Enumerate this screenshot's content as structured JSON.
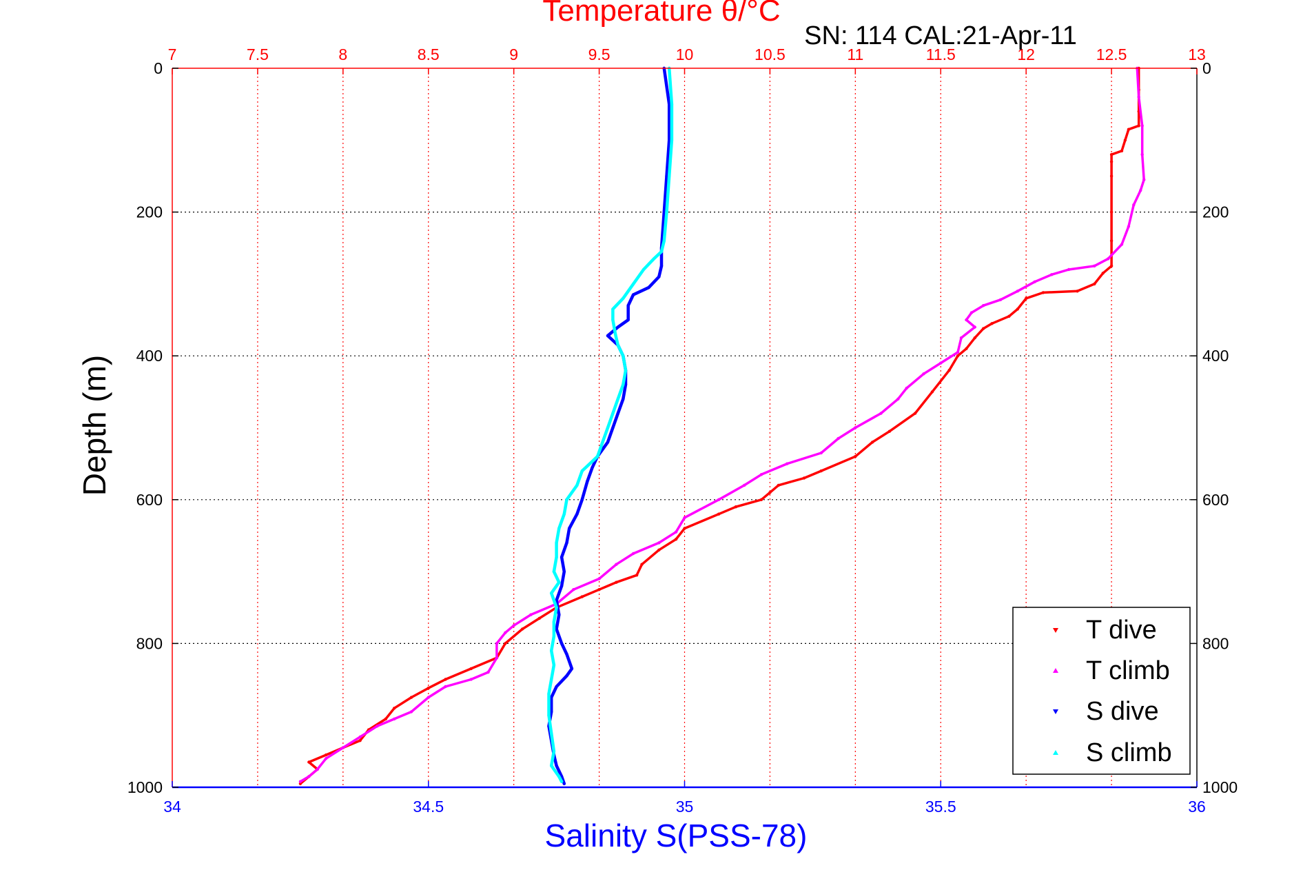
{
  "colors": {
    "temperature_axis": "#ff0000",
    "salinity_axis": "#0000ff",
    "grid_vertical": "#ff0000",
    "grid_horizontal": "#000000",
    "frame_left": "#ff0000",
    "frame_right": "#000000",
    "frame_bottom": "#0000ff",
    "depth_axis": "#000000"
  },
  "chart_data": {
    "type": "line",
    "title": "Temperature θ/°C",
    "subtitle": "SN: 114  CAL:21-Apr-11",
    "xlabel_top": "Temperature θ/°C",
    "xlabel_bottom": "Salinity S(PSS-78)",
    "ylabel": "Depth (m)",
    "x_top_lim": [
      7,
      13
    ],
    "x_bottom_lim": [
      34,
      36
    ],
    "ylim": [
      0,
      1000
    ],
    "y_reversed": true,
    "grid": true,
    "legend_position": "bottom-right",
    "x_top_ticks": [
      "7",
      "7.5",
      "8",
      "8.5",
      "9",
      "9.5",
      "10",
      "10.5",
      "11",
      "11.5",
      "12",
      "12.5",
      "13"
    ],
    "x_bottom_ticks": [
      "34",
      "34.5",
      "35",
      "35.5",
      "36"
    ],
    "y_ticks": [
      "0",
      "200",
      "400",
      "600",
      "800",
      "1000"
    ],
    "series": [
      {
        "name": "T dive",
        "axis": "temperature",
        "color": "#ff0000",
        "marker": "triangle-down",
        "points": [
          [
            12.66,
            0
          ],
          [
            12.66,
            30
          ],
          [
            12.66,
            60
          ],
          [
            12.66,
            80
          ],
          [
            12.6,
            85
          ],
          [
            12.58,
            100
          ],
          [
            12.56,
            115
          ],
          [
            12.5,
            120
          ],
          [
            12.5,
            130
          ],
          [
            12.5,
            150
          ],
          [
            12.5,
            200
          ],
          [
            12.5,
            240
          ],
          [
            12.5,
            275
          ],
          [
            12.45,
            285
          ],
          [
            12.4,
            300
          ],
          [
            12.3,
            310
          ],
          [
            12.1,
            312
          ],
          [
            12.0,
            320
          ],
          [
            11.95,
            335
          ],
          [
            11.9,
            345
          ],
          [
            11.8,
            355
          ],
          [
            11.75,
            362
          ],
          [
            11.7,
            375
          ],
          [
            11.65,
            390
          ],
          [
            11.6,
            400
          ],
          [
            11.55,
            420
          ],
          [
            11.45,
            450
          ],
          [
            11.35,
            480
          ],
          [
            11.2,
            505
          ],
          [
            11.1,
            520
          ],
          [
            11.0,
            540
          ],
          [
            10.8,
            560
          ],
          [
            10.7,
            570
          ],
          [
            10.55,
            580
          ],
          [
            10.5,
            590
          ],
          [
            10.45,
            600
          ],
          [
            10.3,
            610
          ],
          [
            10.2,
            620
          ],
          [
            10.0,
            640
          ],
          [
            9.95,
            655
          ],
          [
            9.85,
            670
          ],
          [
            9.75,
            690
          ],
          [
            9.72,
            705
          ],
          [
            9.6,
            715
          ],
          [
            9.5,
            725
          ],
          [
            9.4,
            735
          ],
          [
            9.25,
            750
          ],
          [
            9.15,
            765
          ],
          [
            9.05,
            780
          ],
          [
            8.95,
            800
          ],
          [
            8.9,
            820
          ],
          [
            8.75,
            835
          ],
          [
            8.6,
            850
          ],
          [
            8.5,
            862
          ],
          [
            8.4,
            875
          ],
          [
            8.3,
            890
          ],
          [
            8.25,
            905
          ],
          [
            8.15,
            920
          ],
          [
            8.1,
            935
          ],
          [
            8.0,
            945
          ],
          [
            7.9,
            955
          ],
          [
            7.8,
            965
          ],
          [
            7.85,
            975
          ],
          [
            7.8,
            985
          ],
          [
            7.75,
            995
          ]
        ]
      },
      {
        "name": "T climb",
        "axis": "temperature",
        "color": "#ff00ff",
        "marker": "triangle-up",
        "points": [
          [
            12.65,
            0
          ],
          [
            12.66,
            40
          ],
          [
            12.68,
            80
          ],
          [
            12.68,
            120
          ],
          [
            12.69,
            155
          ],
          [
            12.67,
            170
          ],
          [
            12.63,
            190
          ],
          [
            12.6,
            220
          ],
          [
            12.56,
            245
          ],
          [
            12.48,
            265
          ],
          [
            12.4,
            275
          ],
          [
            12.25,
            280
          ],
          [
            12.15,
            287
          ],
          [
            12.05,
            297
          ],
          [
            11.95,
            310
          ],
          [
            11.85,
            322
          ],
          [
            11.75,
            330
          ],
          [
            11.68,
            340
          ],
          [
            11.65,
            350
          ],
          [
            11.7,
            360
          ],
          [
            11.62,
            375
          ],
          [
            11.6,
            395
          ],
          [
            11.5,
            410
          ],
          [
            11.4,
            425
          ],
          [
            11.3,
            445
          ],
          [
            11.25,
            460
          ],
          [
            11.15,
            480
          ],
          [
            11.0,
            500
          ],
          [
            10.9,
            515
          ],
          [
            10.8,
            535
          ],
          [
            10.6,
            550
          ],
          [
            10.45,
            565
          ],
          [
            10.35,
            580
          ],
          [
            10.2,
            600
          ],
          [
            10.0,
            625
          ],
          [
            9.95,
            645
          ],
          [
            9.85,
            660
          ],
          [
            9.7,
            675
          ],
          [
            9.6,
            690
          ],
          [
            9.5,
            710
          ],
          [
            9.35,
            725
          ],
          [
            9.25,
            745
          ],
          [
            9.1,
            760
          ],
          [
            9.0,
            775
          ],
          [
            8.95,
            785
          ],
          [
            8.9,
            800
          ],
          [
            8.9,
            820
          ],
          [
            8.85,
            840
          ],
          [
            8.75,
            850
          ],
          [
            8.6,
            860
          ],
          [
            8.5,
            875
          ],
          [
            8.4,
            895
          ],
          [
            8.3,
            905
          ],
          [
            8.2,
            915
          ],
          [
            8.1,
            930
          ],
          [
            8.0,
            945
          ],
          [
            7.9,
            960
          ],
          [
            7.85,
            975
          ],
          [
            7.8,
            985
          ],
          [
            7.75,
            992
          ]
        ]
      },
      {
        "name": "S dive",
        "axis": "salinity",
        "color": "#0000ff",
        "marker": "triangle-down",
        "points": [
          [
            34.96,
            0
          ],
          [
            34.97,
            50
          ],
          [
            34.97,
            100
          ],
          [
            34.965,
            150
          ],
          [
            34.96,
            200
          ],
          [
            34.955,
            250
          ],
          [
            34.955,
            275
          ],
          [
            34.95,
            290
          ],
          [
            34.93,
            305
          ],
          [
            34.9,
            315
          ],
          [
            34.89,
            330
          ],
          [
            34.89,
            350
          ],
          [
            34.87,
            360
          ],
          [
            34.85,
            372
          ],
          [
            34.87,
            385
          ],
          [
            34.88,
            400
          ],
          [
            34.885,
            420
          ],
          [
            34.885,
            440
          ],
          [
            34.88,
            460
          ],
          [
            34.87,
            480
          ],
          [
            34.86,
            500
          ],
          [
            34.85,
            520
          ],
          [
            34.83,
            540
          ],
          [
            34.82,
            555
          ],
          [
            34.81,
            575
          ],
          [
            34.8,
            600
          ],
          [
            34.79,
            620
          ],
          [
            34.775,
            640
          ],
          [
            34.77,
            660
          ],
          [
            34.76,
            680
          ],
          [
            34.765,
            700
          ],
          [
            34.76,
            720
          ],
          [
            34.75,
            740
          ],
          [
            34.755,
            760
          ],
          [
            34.75,
            780
          ],
          [
            34.76,
            800
          ],
          [
            34.77,
            815
          ],
          [
            34.78,
            835
          ],
          [
            34.77,
            845
          ],
          [
            34.75,
            860
          ],
          [
            34.74,
            875
          ],
          [
            34.74,
            895
          ],
          [
            34.735,
            915
          ],
          [
            34.74,
            935
          ],
          [
            34.745,
            955
          ],
          [
            34.75,
            970
          ],
          [
            34.76,
            985
          ],
          [
            34.765,
            995
          ]
        ]
      },
      {
        "name": "S climb",
        "axis": "salinity",
        "color": "#00ffff",
        "marker": "triangle-up",
        "points": [
          [
            34.97,
            0
          ],
          [
            34.975,
            50
          ],
          [
            34.975,
            100
          ],
          [
            34.97,
            150
          ],
          [
            34.965,
            200
          ],
          [
            34.96,
            240
          ],
          [
            34.955,
            255
          ],
          [
            34.94,
            265
          ],
          [
            34.92,
            280
          ],
          [
            34.9,
            300
          ],
          [
            34.88,
            320
          ],
          [
            34.86,
            335
          ],
          [
            34.86,
            350
          ],
          [
            34.865,
            370
          ],
          [
            34.87,
            385
          ],
          [
            34.88,
            400
          ],
          [
            34.885,
            420
          ],
          [
            34.88,
            440
          ],
          [
            34.87,
            460
          ],
          [
            34.86,
            480
          ],
          [
            34.85,
            500
          ],
          [
            34.84,
            520
          ],
          [
            34.83,
            540
          ],
          [
            34.8,
            560
          ],
          [
            34.79,
            580
          ],
          [
            34.77,
            600
          ],
          [
            34.765,
            620
          ],
          [
            34.755,
            640
          ],
          [
            34.75,
            660
          ],
          [
            34.75,
            680
          ],
          [
            34.745,
            700
          ],
          [
            34.755,
            715
          ],
          [
            34.74,
            730
          ],
          [
            34.75,
            750
          ],
          [
            34.745,
            770
          ],
          [
            34.745,
            790
          ],
          [
            34.74,
            810
          ],
          [
            34.745,
            830
          ],
          [
            34.74,
            850
          ],
          [
            34.735,
            870
          ],
          [
            34.735,
            900
          ],
          [
            34.74,
            925
          ],
          [
            34.745,
            950
          ],
          [
            34.74,
            970
          ],
          [
            34.755,
            985
          ],
          [
            34.76,
            992
          ]
        ]
      }
    ]
  }
}
